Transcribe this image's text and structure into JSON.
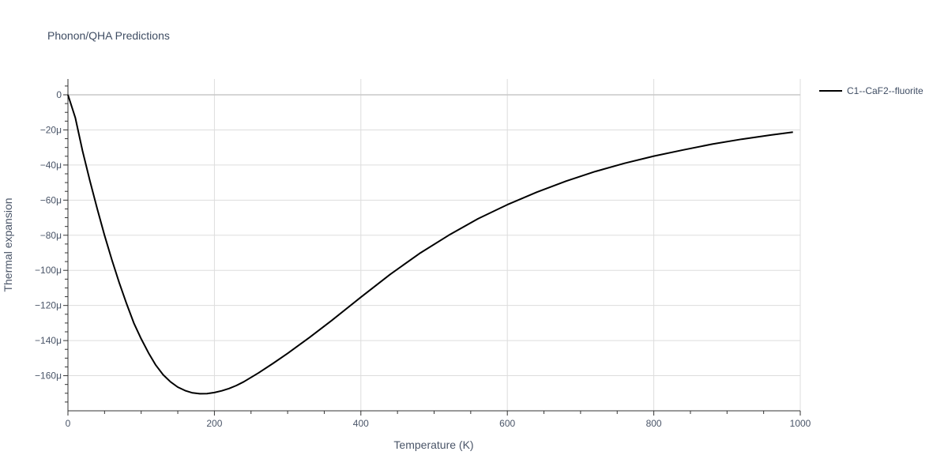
{
  "chart_data": {
    "type": "line",
    "title": "Phonon/QHA Predictions",
    "xlabel": "Temperature (K)",
    "ylabel": "Thermal expansion",
    "xlim": [
      0,
      1000
    ],
    "ylim": [
      -180,
      9
    ],
    "y_unit_suffix": "μ",
    "grid": true,
    "legend_placement": "top-right",
    "x_ticks": [
      0,
      200,
      400,
      600,
      800,
      1000
    ],
    "y_ticks": [
      0,
      -20,
      -40,
      -60,
      -80,
      -100,
      -120,
      -140,
      -160
    ],
    "y_tick_labels": [
      "0",
      "−20μ",
      "−40μ",
      "−60μ",
      "−80μ",
      "−100μ",
      "−120μ",
      "−140μ",
      "−160μ"
    ],
    "series": [
      {
        "name": "C1--CaF2--fluorite",
        "color": "#000000",
        "x": [
          0,
          10,
          20,
          30,
          40,
          50,
          60,
          70,
          80,
          90,
          100,
          110,
          120,
          130,
          140,
          150,
          160,
          170,
          180,
          190,
          200,
          210,
          220,
          230,
          240,
          260,
          280,
          300,
          330,
          360,
          400,
          440,
          480,
          520,
          560,
          600,
          640,
          680,
          720,
          760,
          800,
          840,
          880,
          920,
          960,
          990
        ],
        "y": [
          0,
          -13,
          -32,
          -49,
          -65,
          -80,
          -94,
          -107,
          -119,
          -130,
          -139,
          -147,
          -154,
          -159.5,
          -163.5,
          -166.5,
          -168.5,
          -169.8,
          -170.3,
          -170.2,
          -169.6,
          -168.6,
          -167.3,
          -165.6,
          -163.5,
          -158.5,
          -153,
          -147.3,
          -138.2,
          -128.6,
          -115.3,
          -102.3,
          -90.4,
          -80,
          -70.6,
          -62.6,
          -55.5,
          -49.2,
          -43.7,
          -39,
          -34.9,
          -31.4,
          -28.1,
          -25.3,
          -22.9,
          -21.3
        ]
      }
    ]
  }
}
